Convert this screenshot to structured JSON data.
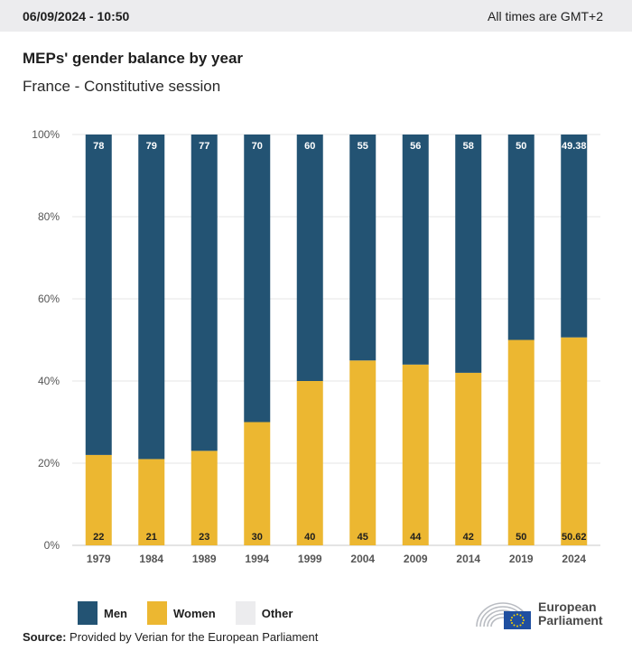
{
  "header": {
    "datetime": "06/09/2024 - 10:50",
    "timezone_note": "All times are GMT+2"
  },
  "title": "MEPs' gender balance by year",
  "subtitle": "France - Constitutive session",
  "chart_data": {
    "type": "bar",
    "stacked": true,
    "categories": [
      "1979",
      "1984",
      "1989",
      "1994",
      "1999",
      "2004",
      "2009",
      "2014",
      "2019",
      "2024"
    ],
    "series": [
      {
        "name": "Women",
        "color": "#ecb731",
        "values": [
          22,
          21,
          23,
          30,
          40,
          45,
          44,
          42,
          50,
          50.62
        ]
      },
      {
        "name": "Men",
        "color": "#235373",
        "values": [
          78,
          79,
          77,
          70,
          60,
          55,
          56,
          58,
          50,
          49.38
        ]
      }
    ],
    "yticks": [
      "0%",
      "20%",
      "40%",
      "60%",
      "80%",
      "100%"
    ],
    "ylim": [
      0,
      100
    ],
    "grid": true,
    "legend_position": "bottom-left"
  },
  "legend": [
    {
      "label": "Men",
      "color": "#235373"
    },
    {
      "label": "Women",
      "color": "#ecb731"
    },
    {
      "label": "Other",
      "color": "#ececee"
    }
  ],
  "source": {
    "label": "Source:",
    "text": "Provided by Verian for the European Parliament"
  },
  "logo": {
    "line1": "European",
    "line2": "Parliament",
    "icon": "european-parliament-logo-icon"
  }
}
